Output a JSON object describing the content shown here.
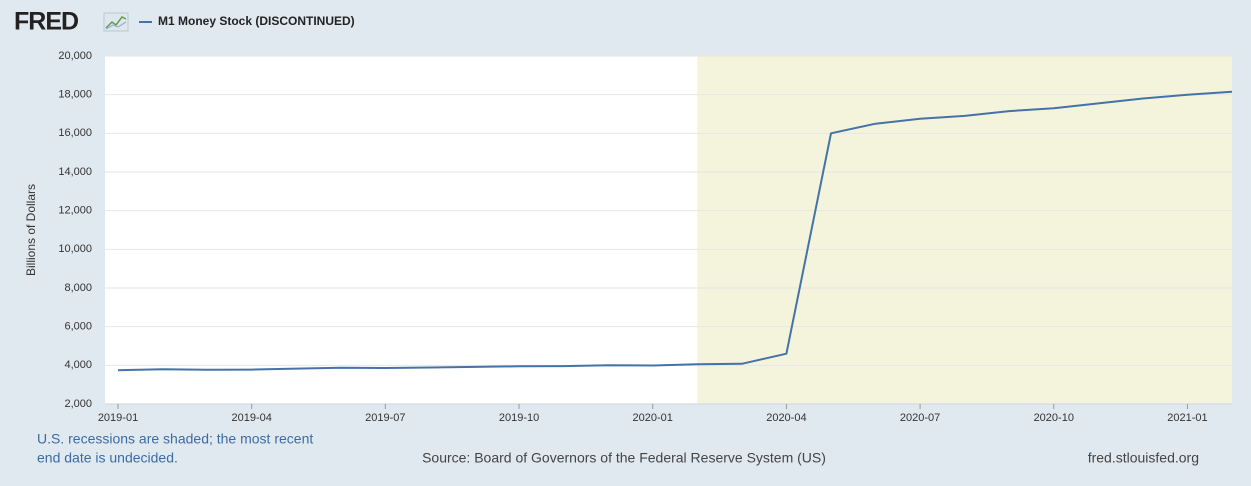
{
  "chart_data": {
    "type": "line",
    "logo": "FRED",
    "y_label": "Billions of Dollars",
    "note": [
      "U.S. recessions are shaded; the most recent",
      "end date is undecided."
    ],
    "source": "Source: Board of Governors of the Federal Reserve System (US)",
    "site": "fred.stlouisfed.org",
    "x": [
      "2019-01",
      "2019-02",
      "2019-03",
      "2019-04",
      "2019-05",
      "2019-06",
      "2019-07",
      "2019-08",
      "2019-09",
      "2019-10",
      "2019-11",
      "2019-12",
      "2020-01",
      "2020-02",
      "2020-03",
      "2020-04",
      "2020-05",
      "2020-06",
      "2020-07",
      "2020-08",
      "2020-09",
      "2020-10",
      "2020-11",
      "2020-12",
      "2021-01",
      "2021-02"
    ],
    "series": [
      {
        "name": "M1 Money Stock (DISCONTINUED)",
        "color": "#4572a7",
        "values": [
          3750,
          3800,
          3770,
          3780,
          3830,
          3870,
          3860,
          3890,
          3920,
          3950,
          3960,
          4000,
          3990,
          4060,
          4080,
          4600,
          16000,
          16500,
          16750,
          16900,
          17150,
          17300,
          17550,
          17800,
          18000,
          18150
        ]
      }
    ],
    "recession_start": "2020-02",
    "recession_color": "#f4f3dc",
    "xlim": [
      "2019-01",
      "2021-02"
    ],
    "xticks": [
      "2019-01",
      "2019-04",
      "2019-07",
      "2019-10",
      "2020-01",
      "2020-04",
      "2020-07",
      "2020-10",
      "2021-01"
    ],
    "ylim": [
      2000,
      20000
    ],
    "yticks": [
      {
        "value": 2000,
        "label": "2,000"
      },
      {
        "value": 4000,
        "label": "4,000"
      },
      {
        "value": 6000,
        "label": "6,000"
      },
      {
        "value": 8000,
        "label": "8,000"
      },
      {
        "value": 10000,
        "label": "10,000"
      },
      {
        "value": 12000,
        "label": "12,000"
      },
      {
        "value": 14000,
        "label": "14,000"
      },
      {
        "value": 16000,
        "label": "16,000"
      },
      {
        "value": 18000,
        "label": "18,000"
      },
      {
        "value": 20000,
        "label": "20,000"
      }
    ],
    "grid": true
  }
}
